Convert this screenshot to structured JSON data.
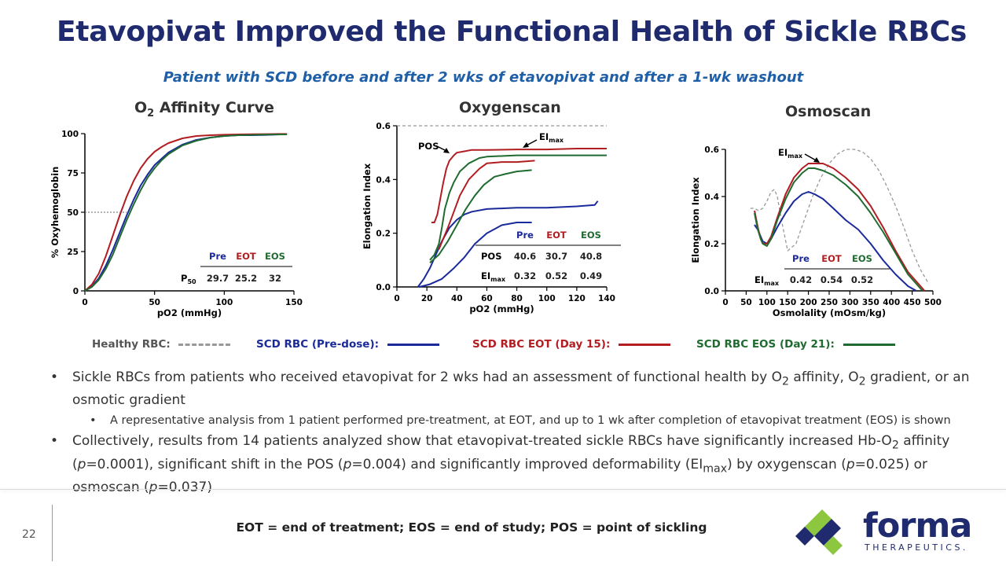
{
  "title": "Etavopivat Improved the Functional Health of Sickle RBCs",
  "subtitle": "Patient with SCD before and after 2 wks of etavopivat and after a 1-wk washout",
  "colors": {
    "pre": "#1a2a9a",
    "eot": "#b21d22",
    "eos": "#1f6b30",
    "healthy": "#999999",
    "brand": "#1f2b6e",
    "accent": "#8dc63f"
  },
  "chart_data": [
    {
      "type": "line",
      "title": "O2 Affinity Curve",
      "xlabel": "pO2 (mmHg)",
      "ylabel": "% Oxyhemoglobin",
      "xlim": [
        0,
        150
      ],
      "ylim": [
        0,
        100
      ],
      "xticks": [
        "0",
        "50",
        "100",
        "150"
      ],
      "yticks": [
        "0",
        "25",
        "50",
        "75",
        "100"
      ],
      "series": [
        {
          "name": "Pre",
          "x": [
            0,
            5,
            10,
            15,
            20,
            25,
            30,
            35,
            40,
            45,
            50,
            55,
            60,
            70,
            80,
            90,
            100,
            110,
            120,
            130,
            140,
            145
          ],
          "y": [
            0,
            3,
            8,
            16,
            26,
            37,
            48,
            58,
            67,
            74,
            80,
            84,
            88,
            93,
            96,
            97.5,
            98.5,
            99,
            99,
            99.2,
            99.5,
            99.5
          ]
        },
        {
          "name": "EOT",
          "x": [
            0,
            5,
            10,
            15,
            20,
            25,
            30,
            35,
            40,
            45,
            50,
            55,
            60,
            70,
            80,
            90,
            100,
            110,
            120,
            130,
            140,
            145
          ],
          "y": [
            0,
            4,
            11,
            22,
            35,
            48,
            60,
            70,
            78,
            84,
            88.5,
            91.5,
            94,
            97,
            98.5,
            99,
            99.3,
            99.5,
            99.6,
            99.7,
            99.8,
            99.8
          ]
        },
        {
          "name": "EOS",
          "x": [
            0,
            5,
            10,
            15,
            20,
            25,
            30,
            35,
            40,
            45,
            50,
            55,
            60,
            70,
            80,
            90,
            100,
            110,
            120,
            130,
            140,
            145
          ],
          "y": [
            0,
            2.5,
            7,
            14,
            23,
            34,
            45,
            55,
            64,
            72,
            78,
            83,
            87,
            92.5,
            95.5,
            97.5,
            98.5,
            99,
            99.2,
            99.4,
            99.5,
            99.5
          ]
        }
      ],
      "table": {
        "headers": [
          "Pre",
          "EOT",
          "EOS"
        ],
        "row_label": "P50",
        "values": [
          "29.7",
          "25.2",
          "32"
        ]
      }
    },
    {
      "type": "line",
      "title": "Oxygenscan",
      "xlabel": "pO2 (mmHg)",
      "ylabel": "Elongation Index",
      "xlim": [
        0,
        140
      ],
      "ylim": [
        0,
        0.6
      ],
      "xticks": [
        "0",
        "20",
        "40",
        "60",
        "80",
        "100",
        "120",
        "140"
      ],
      "yticks": [
        "0.0",
        "0.2",
        "0.4",
        "0.6"
      ],
      "annotations": [
        "POS",
        "EImax"
      ],
      "series": [
        {
          "name": "Healthy",
          "x": [
            0,
            140
          ],
          "y": [
            0.6,
            0.6
          ]
        },
        {
          "name": "Pre",
          "x": [
            14,
            18,
            22,
            26,
            30,
            35,
            40,
            45,
            50,
            60,
            80,
            100,
            120,
            132,
            134
          ],
          "y": [
            0,
            0.03,
            0.07,
            0.12,
            0.17,
            0.22,
            0.25,
            0.27,
            0.28,
            0.29,
            0.295,
            0.295,
            0.3,
            0.305,
            0.32
          ]
        },
        {
          "name": "Pre",
          "x": [
            15,
            22,
            30,
            38,
            45,
            52,
            60,
            70,
            80,
            90
          ],
          "y": [
            0,
            0.01,
            0.03,
            0.07,
            0.11,
            0.16,
            0.2,
            0.23,
            0.24,
            0.24
          ]
        },
        {
          "name": "EOT",
          "x": [
            23,
            25,
            27,
            29,
            31,
            33,
            35,
            38,
            40,
            45,
            50,
            60,
            80,
            100,
            120,
            140
          ],
          "y": [
            0.24,
            0.24,
            0.27,
            0.33,
            0.39,
            0.44,
            0.47,
            0.49,
            0.5,
            0.505,
            0.51,
            0.51,
            0.512,
            0.512,
            0.515,
            0.515
          ]
        },
        {
          "name": "EOT",
          "x": [
            28,
            34,
            38,
            42,
            48,
            55,
            60,
            70,
            80,
            92
          ],
          "y": [
            0.14,
            0.22,
            0.28,
            0.34,
            0.4,
            0.44,
            0.46,
            0.465,
            0.465,
            0.47
          ]
        },
        {
          "name": "EOS",
          "x": [
            22,
            25,
            28,
            30,
            32,
            35,
            38,
            42,
            48,
            55,
            60,
            80,
            100,
            120,
            140
          ],
          "y": [
            0.1,
            0.12,
            0.16,
            0.22,
            0.29,
            0.35,
            0.39,
            0.43,
            0.46,
            0.48,
            0.485,
            0.49,
            0.49,
            0.49,
            0.49
          ]
        },
        {
          "name": "EOS",
          "x": [
            22,
            28,
            34,
            40,
            46,
            52,
            58,
            65,
            72,
            80,
            90
          ],
          "y": [
            0.09,
            0.12,
            0.17,
            0.23,
            0.29,
            0.34,
            0.38,
            0.41,
            0.42,
            0.43,
            0.435
          ]
        }
      ],
      "table": {
        "headers": [
          "Pre",
          "EOT",
          "EOS"
        ],
        "rows": [
          {
            "label": "POS",
            "values": [
              "40.6",
              "30.7",
              "40.8"
            ]
          },
          {
            "label": "EImax",
            "values": [
              "0.32",
              "0.52",
              "0.49"
            ]
          }
        ]
      }
    },
    {
      "type": "line",
      "title": "Osmoscan",
      "xlabel": "Osmolality (mOsm/kg)",
      "ylabel": "Elongation Index",
      "xlim": [
        0,
        500
      ],
      "ylim": [
        0,
        0.6
      ],
      "xticks": [
        "0",
        "50",
        "100",
        "150",
        "200",
        "250",
        "300",
        "350",
        "400",
        "450",
        "500"
      ],
      "yticks": [
        "0.0",
        "0.2",
        "0.4",
        "0.6"
      ],
      "annotations": [
        "EImax"
      ],
      "series": [
        {
          "name": "Healthy",
          "x": [
            60,
            70,
            80,
            90,
            100,
            110,
            118,
            125,
            135,
            150,
            170,
            190,
            210,
            230,
            250,
            270,
            290,
            310,
            330,
            350,
            370,
            390,
            410,
            430,
            450,
            470,
            490
          ],
          "y": [
            0.35,
            0.35,
            0.34,
            0.35,
            0.38,
            0.42,
            0.43,
            0.4,
            0.3,
            0.17,
            0.2,
            0.3,
            0.4,
            0.48,
            0.54,
            0.58,
            0.6,
            0.6,
            0.59,
            0.56,
            0.51,
            0.44,
            0.36,
            0.27,
            0.17,
            0.09,
            0.03
          ]
        },
        {
          "name": "Pre",
          "x": [
            70,
            78,
            85,
            90,
            100,
            110,
            125,
            145,
            165,
            185,
            200,
            215,
            235,
            260,
            290,
            320,
            350,
            380,
            410,
            440,
            460
          ],
          "y": [
            0.28,
            0.26,
            0.23,
            0.21,
            0.2,
            0.22,
            0.27,
            0.33,
            0.38,
            0.41,
            0.42,
            0.41,
            0.39,
            0.35,
            0.3,
            0.26,
            0.2,
            0.13,
            0.07,
            0.02,
            0
          ]
        },
        {
          "name": "EOT",
          "x": [
            70,
            78,
            85,
            90,
            100,
            110,
            125,
            145,
            165,
            185,
            200,
            215,
            235,
            260,
            290,
            320,
            350,
            380,
            410,
            440,
            470,
            480
          ],
          "y": [
            0.34,
            0.27,
            0.22,
            0.2,
            0.2,
            0.23,
            0.31,
            0.41,
            0.48,
            0.52,
            0.54,
            0.54,
            0.54,
            0.52,
            0.48,
            0.43,
            0.36,
            0.27,
            0.17,
            0.08,
            0.02,
            0
          ]
        },
        {
          "name": "EOS",
          "x": [
            70,
            78,
            85,
            90,
            100,
            110,
            125,
            145,
            165,
            185,
            200,
            215,
            235,
            260,
            290,
            320,
            350,
            380,
            410,
            440,
            465,
            475
          ],
          "y": [
            0.33,
            0.26,
            0.22,
            0.2,
            0.19,
            0.22,
            0.3,
            0.39,
            0.46,
            0.5,
            0.52,
            0.52,
            0.51,
            0.49,
            0.45,
            0.4,
            0.33,
            0.25,
            0.16,
            0.07,
            0.02,
            0
          ]
        }
      ],
      "table": {
        "headers": [
          "Pre",
          "EOT",
          "EOS"
        ],
        "rows": [
          {
            "label": "EImax",
            "values": [
              "0.42",
              "0.54",
              "0.52"
            ]
          }
        ]
      }
    }
  ],
  "legend": {
    "healthy": "Healthy RBC:",
    "pre": "SCD RBC (Pre-dose):",
    "eot": "SCD RBC EOT (Day 15):",
    "eos": "SCD RBC EOS (Day 21):"
  },
  "bullets": {
    "b1": "Sickle RBCs from patients who received etavopivat for 2 wks had an assessment of functional health by O",
    "b1_sub": "2",
    "b1_mid": " affinity, O",
    "b1_sub2": "2",
    "b1_end": " gradient, or an osmotic gradient",
    "b2": "A representative analysis from 1 patient performed pre-treatment, at EOT, and up to 1 wk after completion of etavopivat treatment (EOS) is shown",
    "b3a": "Collectively, results from 14 patients analyzed show that etavopivat-treated sickle RBCs have significantly increased Hb-O",
    "b3_sub": "2",
    "b3b": " affinity (",
    "b3_p1": "p",
    "b3c": "=0.0001), significant shift in the POS (",
    "b3_p2": "p",
    "b3d": "=0.004) and significantly improved deformability (EI",
    "b3_sub2": "max",
    "b3e": ") by oxygenscan (",
    "b3_p3": "p",
    "b3f": "=0.025) or osmoscan (",
    "b3_p4": "p",
    "b3g": "=0.037)"
  },
  "footer": {
    "page": "22",
    "footnote": "EOT = end of treatment; EOS = end of study; POS = point of sickling",
    "logo_word": "forma",
    "logo_sub": "THERAPEUTICS."
  }
}
